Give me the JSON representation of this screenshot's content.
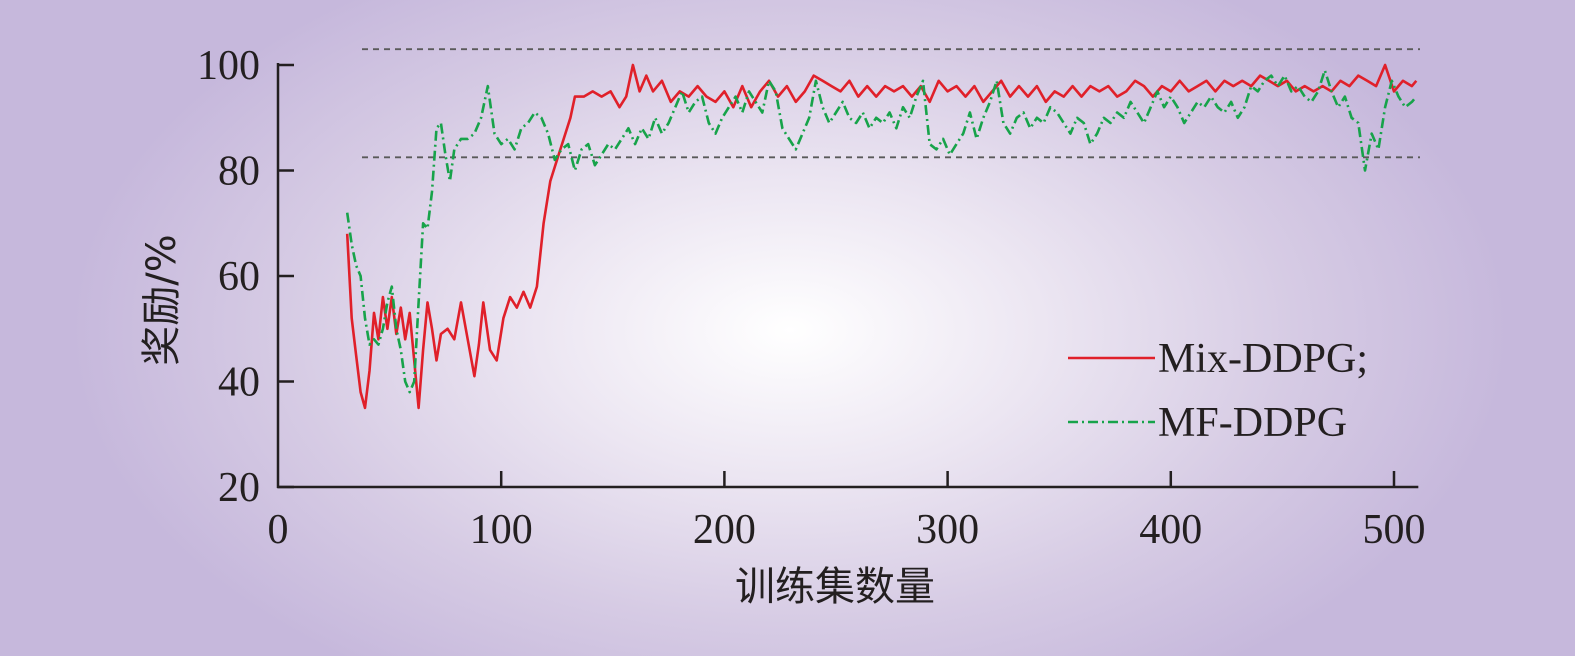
{
  "chart_data": {
    "type": "line",
    "xlabel": "训练集数量",
    "ylabel": "奖励/%",
    "xlim": [
      0,
      510
    ],
    "ylim": [
      20,
      100
    ],
    "xticks": [
      "0",
      "100",
      "200",
      "300",
      "400",
      "500"
    ],
    "yticks": [
      "20",
      "40",
      "60",
      "80",
      "100"
    ],
    "reference_lines": [
      103,
      82.5
    ],
    "legend_position": "lower-right",
    "series": [
      {
        "name": "Mix-DDPG;",
        "color": "#e0202a",
        "style": "solid",
        "points": [
          [
            31,
            68
          ],
          [
            33,
            52
          ],
          [
            35,
            45
          ],
          [
            37,
            38
          ],
          [
            39,
            35
          ],
          [
            41,
            42
          ],
          [
            43,
            53
          ],
          [
            45,
            48
          ],
          [
            47,
            56
          ],
          [
            49,
            50
          ],
          [
            51,
            56
          ],
          [
            53,
            49
          ],
          [
            55,
            54
          ],
          [
            57,
            48
          ],
          [
            59,
            53
          ],
          [
            61,
            44
          ],
          [
            63,
            35
          ],
          [
            65,
            46
          ],
          [
            67,
            55
          ],
          [
            69,
            50
          ],
          [
            71,
            44
          ],
          [
            73,
            49
          ],
          [
            76,
            50
          ],
          [
            79,
            48
          ],
          [
            82,
            55
          ],
          [
            85,
            48
          ],
          [
            88,
            41
          ],
          [
            90,
            47
          ],
          [
            92,
            55
          ],
          [
            95,
            46
          ],
          [
            98,
            44
          ],
          [
            101,
            52
          ],
          [
            104,
            56
          ],
          [
            107,
            54
          ],
          [
            110,
            57
          ],
          [
            113,
            54
          ],
          [
            116,
            58
          ],
          [
            119,
            70
          ],
          [
            122,
            78
          ],
          [
            125,
            82
          ],
          [
            128,
            86
          ],
          [
            131,
            90
          ],
          [
            133,
            94
          ],
          [
            137,
            94
          ],
          [
            141,
            95
          ],
          [
            145,
            94
          ],
          [
            149,
            95
          ],
          [
            153,
            92
          ],
          [
            156,
            94
          ],
          [
            159,
            100
          ],
          [
            162,
            95
          ],
          [
            165,
            98
          ],
          [
            168,
            95
          ],
          [
            172,
            97
          ],
          [
            176,
            93
          ],
          [
            180,
            95
          ],
          [
            184,
            94
          ],
          [
            188,
            96
          ],
          [
            192,
            94
          ],
          [
            196,
            93
          ],
          [
            200,
            95
          ],
          [
            204,
            92
          ],
          [
            208,
            96
          ],
          [
            212,
            92
          ],
          [
            216,
            95
          ],
          [
            220,
            97
          ],
          [
            224,
            94
          ],
          [
            228,
            96
          ],
          [
            232,
            93
          ],
          [
            236,
            95
          ],
          [
            240,
            98
          ],
          [
            244,
            97
          ],
          [
            248,
            96
          ],
          [
            252,
            95
          ],
          [
            256,
            97
          ],
          [
            260,
            94
          ],
          [
            264,
            96
          ],
          [
            268,
            94
          ],
          [
            272,
            96
          ],
          [
            276,
            95
          ],
          [
            280,
            96
          ],
          [
            284,
            94
          ],
          [
            288,
            96
          ],
          [
            292,
            93
          ],
          [
            296,
            97
          ],
          [
            300,
            95
          ],
          [
            304,
            96
          ],
          [
            308,
            94
          ],
          [
            312,
            96
          ],
          [
            316,
            93
          ],
          [
            320,
            95
          ],
          [
            324,
            97
          ],
          [
            328,
            94
          ],
          [
            332,
            96
          ],
          [
            336,
            94
          ],
          [
            340,
            96
          ],
          [
            344,
            93
          ],
          [
            348,
            95
          ],
          [
            352,
            94
          ],
          [
            356,
            96
          ],
          [
            360,
            94
          ],
          [
            364,
            96
          ],
          [
            368,
            95
          ],
          [
            372,
            96
          ],
          [
            376,
            94
          ],
          [
            380,
            95
          ],
          [
            384,
            97
          ],
          [
            388,
            96
          ],
          [
            392,
            94
          ],
          [
            396,
            96
          ],
          [
            400,
            95
          ],
          [
            404,
            97
          ],
          [
            408,
            95
          ],
          [
            412,
            96
          ],
          [
            416,
            97
          ],
          [
            420,
            95
          ],
          [
            424,
            97
          ],
          [
            428,
            96
          ],
          [
            432,
            97
          ],
          [
            436,
            96
          ],
          [
            440,
            98
          ],
          [
            444,
            97
          ],
          [
            448,
            96
          ],
          [
            452,
            97
          ],
          [
            456,
            95
          ],
          [
            460,
            96
          ],
          [
            464,
            95
          ],
          [
            468,
            96
          ],
          [
            472,
            95
          ],
          [
            476,
            97
          ],
          [
            480,
            96
          ],
          [
            484,
            98
          ],
          [
            488,
            97
          ],
          [
            492,
            96
          ],
          [
            496,
            100
          ],
          [
            500,
            95
          ],
          [
            504,
            97
          ],
          [
            508,
            96
          ],
          [
            510,
            97
          ]
        ]
      },
      {
        "name": "MF-DDPG",
        "color": "#17a34a",
        "style": "dashdot",
        "points": [
          [
            31,
            72
          ],
          [
            33,
            66
          ],
          [
            35,
            62
          ],
          [
            37,
            60
          ],
          [
            39,
            52
          ],
          [
            41,
            47
          ],
          [
            43,
            48
          ],
          [
            45,
            47
          ],
          [
            47,
            50
          ],
          [
            49,
            55
          ],
          [
            51,
            58
          ],
          [
            53,
            50
          ],
          [
            55,
            46
          ],
          [
            57,
            40
          ],
          [
            59,
            38
          ],
          [
            61,
            40
          ],
          [
            63,
            55
          ],
          [
            65,
            70
          ],
          [
            67,
            69
          ],
          [
            69,
            76
          ],
          [
            71,
            88
          ],
          [
            73,
            89
          ],
          [
            75,
            83
          ],
          [
            77,
            78
          ],
          [
            79,
            84
          ],
          [
            82,
            86
          ],
          [
            85,
            86
          ],
          [
            88,
            87
          ],
          [
            91,
            90
          ],
          [
            94,
            96
          ],
          [
            97,
            87
          ],
          [
            100,
            85
          ],
          [
            103,
            86
          ],
          [
            106,
            84
          ],
          [
            109,
            88
          ],
          [
            112,
            89
          ],
          [
            115,
            91
          ],
          [
            118,
            90
          ],
          [
            121,
            87
          ],
          [
            124,
            82
          ],
          [
            127,
            84
          ],
          [
            130,
            85
          ],
          [
            133,
            80
          ],
          [
            136,
            84
          ],
          [
            139,
            85
          ],
          [
            142,
            81
          ],
          [
            145,
            83
          ],
          [
            148,
            85
          ],
          [
            151,
            84
          ],
          [
            154,
            86
          ],
          [
            157,
            88
          ],
          [
            160,
            85
          ],
          [
            163,
            88
          ],
          [
            166,
            86
          ],
          [
            169,
            90
          ],
          [
            172,
            87
          ],
          [
            175,
            89
          ],
          [
            178,
            92
          ],
          [
            181,
            95
          ],
          [
            184,
            91
          ],
          [
            187,
            93
          ],
          [
            190,
            94
          ],
          [
            193,
            89
          ],
          [
            196,
            87
          ],
          [
            199,
            90
          ],
          [
            202,
            92
          ],
          [
            205,
            94
          ],
          [
            208,
            91
          ],
          [
            211,
            95
          ],
          [
            214,
            93
          ],
          [
            217,
            91
          ],
          [
            220,
            97
          ],
          [
            223,
            95
          ],
          [
            226,
            88
          ],
          [
            229,
            86
          ],
          [
            232,
            84
          ],
          [
            235,
            87
          ],
          [
            238,
            90
          ],
          [
            241,
            97
          ],
          [
            244,
            92
          ],
          [
            247,
            89
          ],
          [
            250,
            91
          ],
          [
            253,
            93
          ],
          [
            256,
            90
          ],
          [
            259,
            89
          ],
          [
            262,
            91
          ],
          [
            265,
            88
          ],
          [
            268,
            90
          ],
          [
            271,
            89
          ],
          [
            274,
            91
          ],
          [
            277,
            88
          ],
          [
            280,
            92
          ],
          [
            283,
            90
          ],
          [
            286,
            94
          ],
          [
            289,
            97
          ],
          [
            292,
            85
          ],
          [
            295,
            84
          ],
          [
            298,
            86
          ],
          [
            301,
            83
          ],
          [
            304,
            85
          ],
          [
            307,
            87
          ],
          [
            310,
            91
          ],
          [
            313,
            86
          ],
          [
            316,
            90
          ],
          [
            319,
            93
          ],
          [
            322,
            97
          ],
          [
            325,
            89
          ],
          [
            328,
            87
          ],
          [
            331,
            90
          ],
          [
            334,
            91
          ],
          [
            337,
            88
          ],
          [
            340,
            90
          ],
          [
            343,
            89
          ],
          [
            346,
            92
          ],
          [
            349,
            91
          ],
          [
            352,
            89
          ],
          [
            355,
            87
          ],
          [
            358,
            90
          ],
          [
            361,
            89
          ],
          [
            364,
            85
          ],
          [
            367,
            87
          ],
          [
            370,
            90
          ],
          [
            373,
            89
          ],
          [
            376,
            91
          ],
          [
            379,
            90
          ],
          [
            382,
            93
          ],
          [
            385,
            91
          ],
          [
            388,
            89
          ],
          [
            391,
            92
          ],
          [
            394,
            95
          ],
          [
            397,
            92
          ],
          [
            400,
            94
          ],
          [
            403,
            92
          ],
          [
            406,
            89
          ],
          [
            409,
            91
          ],
          [
            412,
            93
          ],
          [
            415,
            92
          ],
          [
            418,
            94
          ],
          [
            421,
            92
          ],
          [
            424,
            91
          ],
          [
            427,
            93
          ],
          [
            430,
            90
          ],
          [
            433,
            92
          ],
          [
            436,
            96
          ],
          [
            439,
            95
          ],
          [
            442,
            97
          ],
          [
            445,
            98
          ],
          [
            448,
            96
          ],
          [
            451,
            98
          ],
          [
            454,
            95
          ],
          [
            457,
            96
          ],
          [
            460,
            94
          ],
          [
            463,
            93
          ],
          [
            466,
            95
          ],
          [
            469,
            99
          ],
          [
            472,
            95
          ],
          [
            475,
            92
          ],
          [
            478,
            94
          ],
          [
            481,
            90
          ],
          [
            484,
            89
          ],
          [
            487,
            80
          ],
          [
            490,
            87
          ],
          [
            493,
            84
          ],
          [
            496,
            92
          ],
          [
            499,
            97
          ],
          [
            502,
            94
          ],
          [
            505,
            92
          ],
          [
            508,
            93
          ],
          [
            510,
            94
          ]
        ]
      }
    ]
  }
}
